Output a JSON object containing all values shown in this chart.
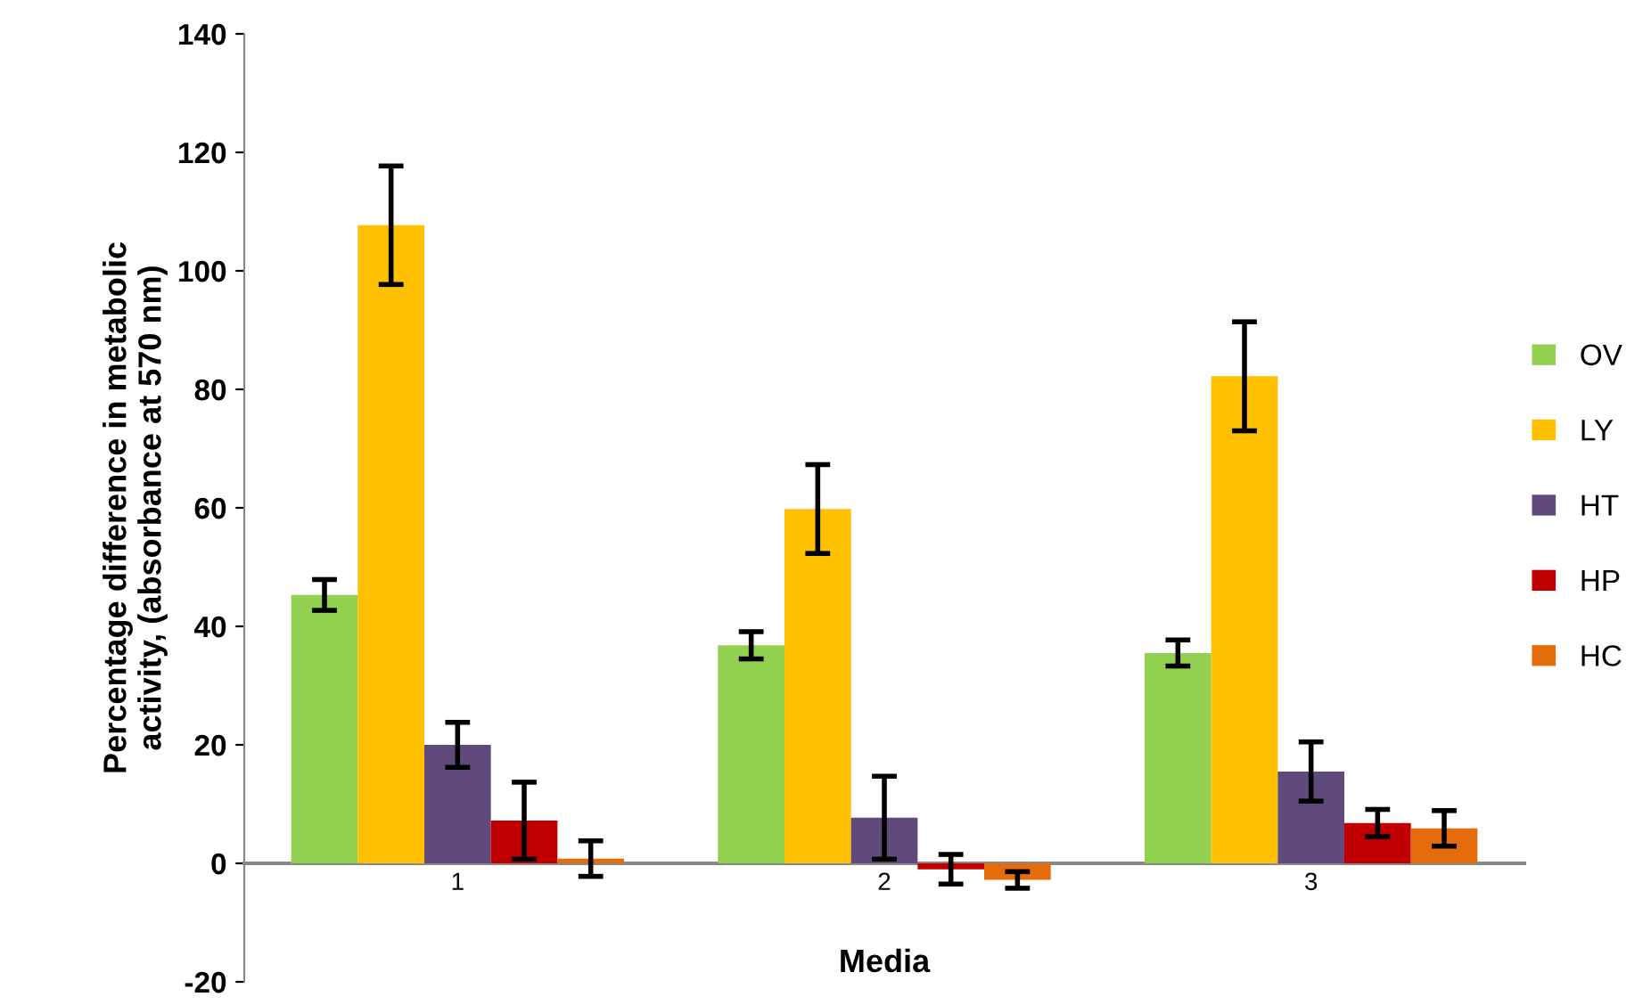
{
  "chart_data": {
    "type": "bar",
    "xlabel": "Media",
    "ylabel": "Percentage difference in metabolic\nactivity, (absorbance at 570 nm)",
    "categories": [
      "1",
      "2",
      "3"
    ],
    "series": [
      {
        "name": "OV",
        "color": "#92d050",
        "values": [
          45.3,
          36.8,
          35.5
        ],
        "errors": [
          2.6,
          2.3,
          2.2
        ]
      },
      {
        "name": "LY",
        "color": "#ffc000",
        "values": [
          107.7,
          59.8,
          82.2
        ],
        "errors": [
          10,
          7.5,
          9.2
        ]
      },
      {
        "name": "HT",
        "color": "#604a7b",
        "values": [
          20,
          7.7,
          15.5
        ],
        "errors": [
          3.8,
          7,
          5
        ]
      },
      {
        "name": "HP",
        "color": "#c00000",
        "values": [
          7.2,
          -1,
          6.8
        ],
        "errors": [
          6.5,
          2.5,
          2.3
        ]
      },
      {
        "name": "HC",
        "color": "#e46c0a",
        "values": [
          0.8,
          -2.8,
          5.9
        ],
        "errors": [
          3,
          1.4,
          3
        ]
      }
    ],
    "ylim": [
      -20,
      140
    ],
    "yticks": [
      -20,
      0,
      20,
      40,
      60,
      80,
      100,
      120,
      140
    ],
    "grid": false,
    "legend": "right"
  }
}
